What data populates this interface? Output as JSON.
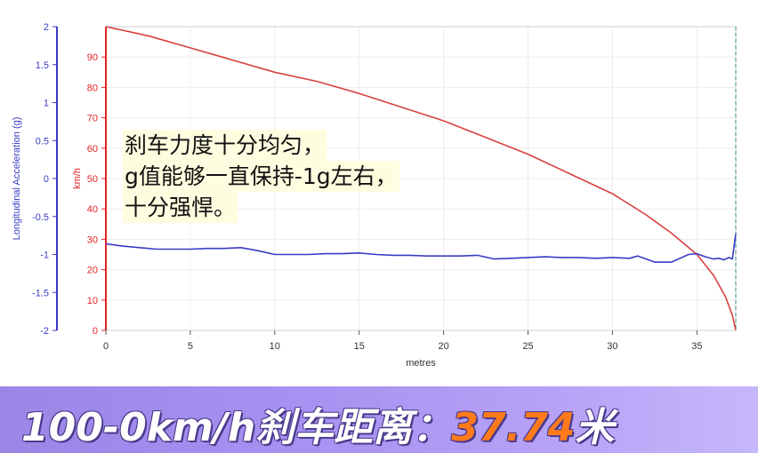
{
  "chart_data": {
    "type": "line",
    "xlabel": "metres",
    "xlim": [
      0,
      37.3
    ],
    "x_ticks": [
      0,
      5,
      10,
      15,
      20,
      25,
      30,
      35
    ],
    "left_axis": {
      "label": "Longitudinal Acceleration (g)",
      "ylim": [
        -2,
        2
      ],
      "ticks": [
        "2",
        "1.5",
        "1",
        "0.5",
        "0",
        "-0.5",
        "-1",
        "-1.5",
        "-2"
      ],
      "color": "#3a3ac8"
    },
    "right_axis": {
      "label": "km/h",
      "ylim": [
        0,
        100
      ],
      "ticks": [
        "90",
        "80",
        "70",
        "60",
        "50",
        "40",
        "30",
        "20",
        "10",
        "0"
      ],
      "color": "#e02424"
    },
    "series": [
      {
        "axis": "right",
        "color": "#d84040",
        "x": [
          0,
          2.5,
          5,
          7.5,
          10,
          12.5,
          15,
          17.5,
          20,
          22.5,
          25,
          27.5,
          30,
          32,
          33.5,
          35,
          36,
          36.7,
          37.1,
          37.3
        ],
        "y": [
          100,
          97,
          93,
          89,
          85,
          82,
          78,
          73.5,
          69,
          63.5,
          58,
          51.5,
          45,
          38,
          32,
          25,
          18,
          11,
          5,
          0
        ]
      },
      {
        "axis": "left",
        "color": "#3a3ac8",
        "x": [
          0,
          1,
          2,
          3,
          4,
          5,
          6,
          7,
          8,
          9,
          10,
          11,
          12,
          13,
          14,
          15,
          16,
          17,
          18,
          19,
          20,
          21,
          22,
          23,
          24,
          25,
          26,
          27,
          28,
          29,
          30,
          31,
          31.5,
          32,
          32.5,
          33,
          33.5,
          34,
          34.5,
          35,
          35.5,
          36,
          36.3,
          36.6,
          36.9,
          37.1,
          37.3
        ],
        "y": [
          -0.86,
          -0.89,
          -0.91,
          -0.93,
          -0.93,
          -0.93,
          -0.92,
          -0.92,
          -0.91,
          -0.95,
          -1.0,
          -1.0,
          -1.0,
          -0.99,
          -0.99,
          -0.98,
          -1.0,
          -1.01,
          -1.01,
          -1.02,
          -1.02,
          -1.02,
          -1.01,
          -1.06,
          -1.05,
          -1.04,
          -1.03,
          -1.04,
          -1.04,
          -1.05,
          -1.04,
          -1.05,
          -1.02,
          -1.06,
          -1.1,
          -1.1,
          -1.1,
          -1.05,
          -1.0,
          -0.99,
          -1.03,
          -1.06,
          -1.05,
          -1.07,
          -1.04,
          -1.06,
          -0.73
        ]
      }
    ]
  },
  "note": {
    "line1": "刹车力度十分均匀，",
    "line2": "g值能够一直保持-1g左右，",
    "line3": "十分强悍。"
  },
  "banner": {
    "prefix": "100-0km/h刹车距离：",
    "value": "37.74",
    "unit": "米"
  }
}
